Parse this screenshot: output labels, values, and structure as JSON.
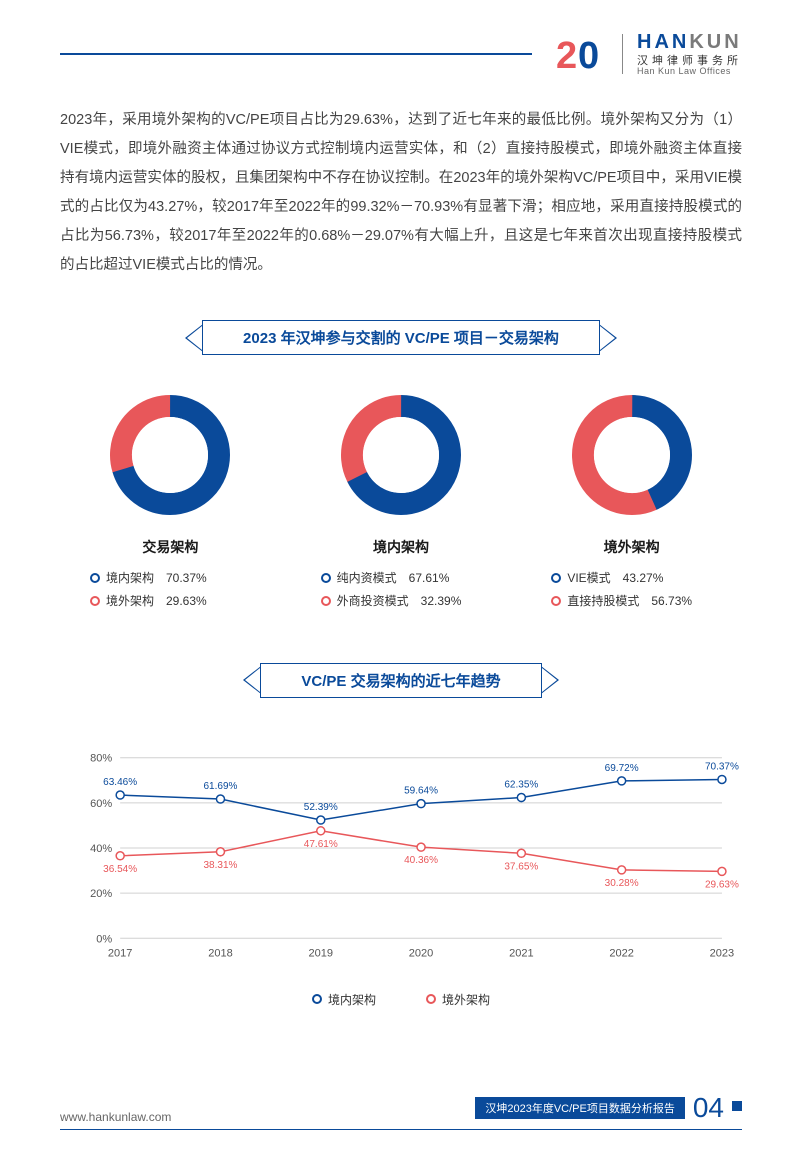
{
  "colors": {
    "primary_blue": "#0a4a9a",
    "accent_red": "#e8575a",
    "text_body": "#444444",
    "text_dark": "#1a1a1a",
    "grid": "#d0d0d0",
    "background": "#ffffff"
  },
  "header": {
    "logo_year": "20",
    "brand_en_1": "HAN",
    "brand_en_2": "KUN",
    "brand_cn": "汉坤律师事务所",
    "brand_sub": "Han Kun Law Offices"
  },
  "paragraph": "2023年，采用境外架构的VC/PE项目占比为29.63%，达到了近七年来的最低比例。境外架构又分为（1）VIE模式，即境外融资主体通过协议方式控制境内运营实体，和（2）直接持股模式，即境外融资主体直接持有境内运营实体的股权，且集团架构中不存在协议控制。在2023年的境外架构VC/PE项目中，采用VIE模式的占比仅为43.27%，较2017年至2022年的99.32%－70.93%有显著下滑；相应地，采用直接持股模式的占比为56.73%，较2017年至2022年的0.68%－29.07%有大幅上升，且这是七年来首次出现直接持股模式的占比超过VIE模式占比的情况。",
  "banner1": "2023 年汉坤参与交割的 VC/PE 项目－交易架构",
  "donuts": [
    {
      "title": "交易架构",
      "ring_width": 22,
      "slices": [
        {
          "label": "境内架构",
          "value": 70.37,
          "pct_label": "70.37%",
          "color": "#0a4a9a"
        },
        {
          "label": "境外架构",
          "value": 29.63,
          "pct_label": "29.63%",
          "color": "#e8575a"
        }
      ]
    },
    {
      "title": "境内架构",
      "ring_width": 22,
      "slices": [
        {
          "label": "纯内资模式",
          "value": 67.61,
          "pct_label": "67.61%",
          "color": "#0a4a9a"
        },
        {
          "label": "外商投资模式",
          "value": 32.39,
          "pct_label": "32.39%",
          "color": "#e8575a"
        }
      ]
    },
    {
      "title": "境外架构",
      "ring_width": 22,
      "slices": [
        {
          "label": "VIE模式",
          "value": 43.27,
          "pct_label": "43.27%",
          "color": "#0a4a9a"
        },
        {
          "label": "直接持股模式",
          "value": 56.73,
          "pct_label": "56.73%",
          "color": "#e8575a"
        }
      ]
    }
  ],
  "banner2": "VC/PE 交易架构的近七年趋势",
  "line_chart": {
    "type": "line",
    "years": [
      "2017",
      "2018",
      "2019",
      "2020",
      "2021",
      "2022",
      "2023"
    ],
    "ylim": [
      0,
      80
    ],
    "ytick_step": 20,
    "ytick_suffix": "%",
    "grid_color": "#d0d0d0",
    "marker_style": "hollow-circle",
    "marker_radius": 4,
    "line_width": 1.5,
    "label_fontsize": 10,
    "series": [
      {
        "name": "境内架构",
        "color": "#0a4a9a",
        "values": [
          63.46,
          61.69,
          52.39,
          59.64,
          62.35,
          69.72,
          70.37
        ],
        "labels": [
          "63.46%",
          "61.69%",
          "52.39%",
          "59.64%",
          "62.35%",
          "69.72%",
          "70.37%"
        ],
        "label_pos": [
          "above",
          "above",
          "above",
          "above",
          "above",
          "above",
          "above"
        ]
      },
      {
        "name": "境外架构",
        "color": "#e8575a",
        "values": [
          36.54,
          38.31,
          47.61,
          40.36,
          37.65,
          30.28,
          29.63
        ],
        "labels": [
          "36.54%",
          "38.31%",
          "47.61%",
          "40.36%",
          "37.65%",
          "30.28%",
          "29.63%"
        ],
        "label_pos": [
          "below",
          "below",
          "below",
          "below",
          "below",
          "below",
          "below"
        ]
      }
    ]
  },
  "footer": {
    "url": "www.hankunlaw.com",
    "report_title": "汉坤2023年度VC/PE项目数据分析报告",
    "page_number": "04"
  }
}
